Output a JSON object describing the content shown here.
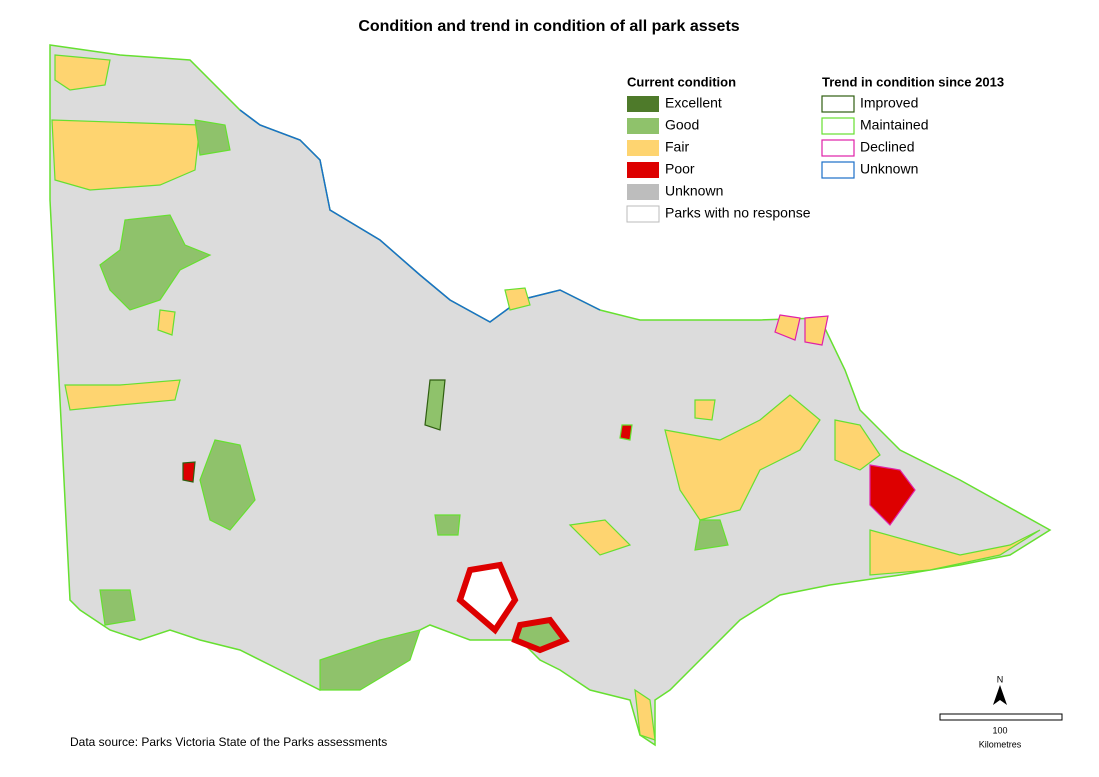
{
  "title": "Condition and trend in condition of all park assets",
  "legend": {
    "current": {
      "heading": "Current condition",
      "items": [
        {
          "label": "Excellent",
          "color": "#4e7a2a"
        },
        {
          "label": "Good",
          "color": "#8fc26b"
        },
        {
          "label": "Fair",
          "color": "#fed470"
        },
        {
          "label": "Poor",
          "color": "#dd0000"
        },
        {
          "label": "Unknown",
          "color": "#bdbdbd"
        },
        {
          "label": "Parks with no response",
          "color": "#ffffff"
        }
      ]
    },
    "trend": {
      "heading": "Trend in condition since 2013",
      "items": [
        {
          "label": "Improved",
          "color": "#2f5e10"
        },
        {
          "label": "Maintained",
          "color": "#66e030"
        },
        {
          "label": "Declined",
          "color": "#e020a8"
        },
        {
          "label": "Unknown",
          "color": "#1a6fc9"
        }
      ]
    }
  },
  "source": "Data source: Parks Victoria State of the Parks assessments",
  "north": "N",
  "scale": {
    "label": "100",
    "unit": "Kilometres"
  }
}
